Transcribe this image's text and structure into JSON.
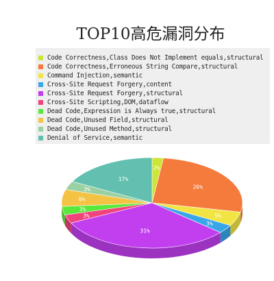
{
  "chart_data": {
    "type": "pie",
    "title": "TOP10高危漏洞分布",
    "legend_position": "top",
    "slices": [
      {
        "label": "Code Correctness,Class Does Not Implement equals,structural",
        "value": 2,
        "value_label": "2%",
        "color": "#cde536"
      },
      {
        "label": "Code Correctness,Erroneous String Compare,structural",
        "value": 26,
        "value_label": "26%",
        "color": "#f47b3c"
      },
      {
        "label": "Command Injection,semantic",
        "value": 5,
        "value_label": "5%",
        "color": "#f2e543"
      },
      {
        "label": "Cross-Site Request Forgery,content",
        "value": 3,
        "value_label": "3%",
        "color": "#3aa6ea"
      },
      {
        "label": "Cross-Site Request Forgery,structural",
        "value": 31,
        "value_label": "31%",
        "color": "#c23ff0"
      },
      {
        "label": "Cross-Site Scripting,DOM,dataflow",
        "value": 3,
        "value_label": "3%",
        "color": "#f0437b"
      },
      {
        "label": "Dead Code,Expression is Always true,structural",
        "value": 3,
        "value_label": "3%",
        "color": "#59e83c"
      },
      {
        "label": "Dead Code,Unused Field,structural",
        "value": 6,
        "value_label": "6%",
        "color": "#f4c343"
      },
      {
        "label": "Dead Code,Unused Method,structural",
        "value": 3,
        "value_label": "3%",
        "color": "#9bd1a2"
      },
      {
        "label": "Denial of Service,semantic",
        "value": 17,
        "value_label": "17%",
        "color": "#63c0b0"
      }
    ]
  }
}
